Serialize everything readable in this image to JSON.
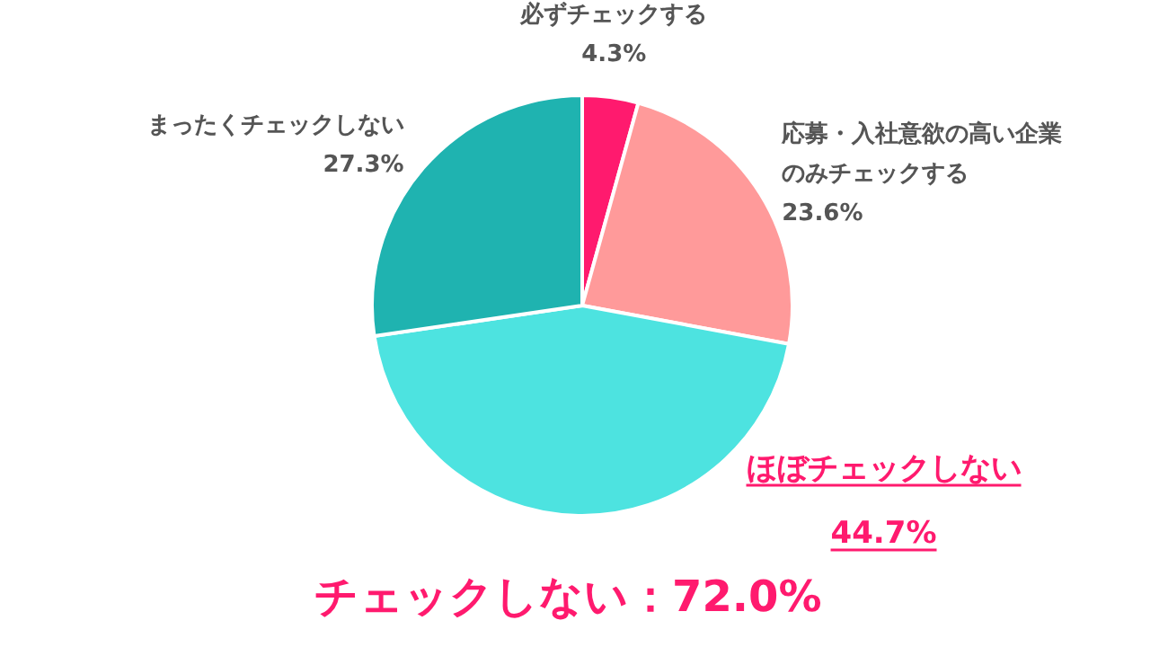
{
  "chart_data": {
    "type": "pie",
    "categories": [
      "必ずチェックする",
      "応募・入社意欲の高い企業のみチェックする",
      "ほぼチェックしない",
      "まったくチェックしない"
    ],
    "values": [
      4.3,
      23.6,
      44.7,
      27.3
    ],
    "value_labels": [
      "4.3%",
      "23.6%",
      "44.7%",
      "27.3%"
    ],
    "colors": [
      "#ff1a6e",
      "#ff9a9a",
      "#4de3e0",
      "#1fb3b0"
    ],
    "annotations": [
      "チェックしない：72.0%"
    ]
  }
}
